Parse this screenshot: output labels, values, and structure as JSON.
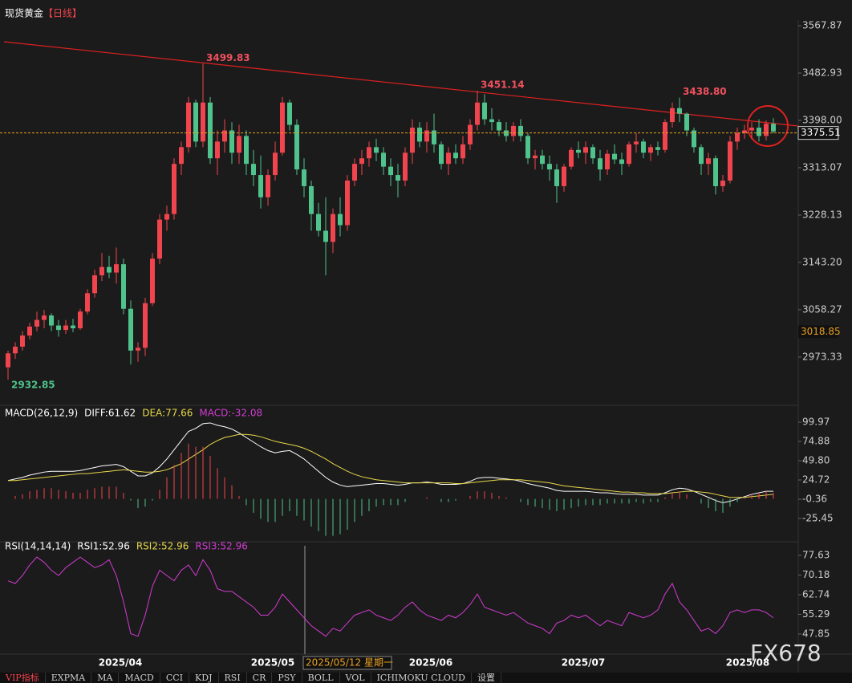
{
  "header": {
    "title": "现货黄金",
    "period": "【日线】"
  },
  "chart_data": [
    {
      "type": "candlestick",
      "up_color": "#f0444e",
      "down_color": "#4fc38b",
      "ylim": [
        2894,
        3578
      ],
      "yticks": [
        3567.87,
        3482.93,
        {
          "value": 3398,
          "label": "3398.00"
        },
        3313.07,
        3228.13,
        {
          "value": 3143.2,
          "label": "3143.20"
        },
        3058.27,
        2973.33
      ],
      "price_line": 3375.51,
      "cursor_price": 3018.85,
      "annotations": [
        {
          "value": 3499.83,
          "label": "3499.83"
        },
        {
          "value": 3451.14,
          "label": "3451.14"
        },
        {
          "value": 3438.8,
          "label": "3438.80"
        },
        {
          "value": 2932.85,
          "label": "2932.85"
        }
      ],
      "ohlc": [
        [
          2955,
          2985,
          2932.85,
          2980
        ],
        [
          2980,
          3000,
          2970,
          2992
        ],
        [
          2992,
          3020,
          2985,
          3012
        ],
        [
          3012,
          3035,
          3005,
          3028
        ],
        [
          3028,
          3055,
          3020,
          3040
        ],
        [
          3040,
          3058,
          3025,
          3048
        ],
        [
          3048,
          3052,
          3020,
          3030
        ],
        [
          3030,
          3040,
          3010,
          3022
        ],
        [
          3022,
          3040,
          3015,
          3030
        ],
        [
          3030,
          3042,
          3018,
          3025
        ],
        [
          3025,
          3060,
          3022,
          3055
        ],
        [
          3055,
          3095,
          3050,
          3088
        ],
        [
          3088,
          3130,
          3080,
          3120
        ],
        [
          3120,
          3160,
          3110,
          3135
        ],
        [
          3135,
          3155,
          3115,
          3125
        ],
        [
          3125,
          3170,
          3105,
          3140
        ],
        [
          3140,
          3150,
          3050,
          3060
        ],
        [
          3060,
          3075,
          2960,
          2985
        ],
        [
          2985,
          3000,
          2965,
          2990
        ],
        [
          2990,
          3080,
          2975,
          3070
        ],
        [
          3070,
          3160,
          3065,
          3150
        ],
        [
          3150,
          3230,
          3140,
          3220
        ],
        [
          3220,
          3245,
          3200,
          3230
        ],
        [
          3230,
          3330,
          3220,
          3320
        ],
        [
          3320,
          3360,
          3300,
          3350
        ],
        [
          3350,
          3440,
          3340,
          3430
        ],
        [
          3430,
          3435,
          3350,
          3360
        ],
        [
          3360,
          3499.83,
          3350,
          3430
        ],
        [
          3430,
          3440,
          3320,
          3330
        ],
        [
          3330,
          3380,
          3300,
          3360
        ],
        [
          3360,
          3400,
          3340,
          3380
        ],
        [
          3380,
          3395,
          3320,
          3340
        ],
        [
          3340,
          3390,
          3320,
          3370
        ],
        [
          3370,
          3380,
          3300,
          3320
        ],
        [
          3320,
          3345,
          3280,
          3300
        ],
        [
          3300,
          3335,
          3240,
          3260
        ],
        [
          3260,
          3310,
          3245,
          3300
        ],
        [
          3300,
          3360,
          3290,
          3340
        ],
        [
          3340,
          3440,
          3335,
          3430
        ],
        [
          3430,
          3435,
          3380,
          3390
        ],
        [
          3390,
          3400,
          3300,
          3310
        ],
        [
          3310,
          3330,
          3260,
          3280
        ],
        [
          3280,
          3290,
          3200,
          3230
        ],
        [
          3230,
          3250,
          3190,
          3200
        ],
        [
          3200,
          3260,
          3120,
          3180
        ],
        [
          3180,
          3240,
          3160,
          3230
        ],
        [
          3230,
          3260,
          3190,
          3210
        ],
        [
          3210,
          3300,
          3200,
          3290
        ],
        [
          3290,
          3330,
          3280,
          3320
        ],
        [
          3320,
          3345,
          3300,
          3330
        ],
        [
          3330,
          3360,
          3315,
          3350
        ],
        [
          3350,
          3365,
          3325,
          3340
        ],
        [
          3340,
          3350,
          3300,
          3315
        ],
        [
          3315,
          3330,
          3280,
          3300
        ],
        [
          3300,
          3320,
          3260,
          3290
        ],
        [
          3290,
          3350,
          3280,
          3340
        ],
        [
          3340,
          3400,
          3320,
          3385
        ],
        [
          3385,
          3395,
          3350,
          3360
        ],
        [
          3360,
          3395,
          3340,
          3380
        ],
        [
          3380,
          3410,
          3340,
          3355
        ],
        [
          3355,
          3360,
          3310,
          3320
        ],
        [
          3320,
          3350,
          3300,
          3340
        ],
        [
          3340,
          3355,
          3320,
          3330
        ],
        [
          3330,
          3370,
          3320,
          3355
        ],
        [
          3355,
          3400,
          3345,
          3390
        ],
        [
          3390,
          3451.14,
          3380,
          3430
        ],
        [
          3430,
          3445,
          3390,
          3400
        ],
        [
          3400,
          3420,
          3380,
          3395
        ],
        [
          3395,
          3400,
          3370,
          3380
        ],
        [
          3380,
          3395,
          3360,
          3370
        ],
        [
          3370,
          3395,
          3360,
          3388
        ],
        [
          3388,
          3400,
          3360,
          3370
        ],
        [
          3370,
          3375,
          3320,
          3330
        ],
        [
          3330,
          3345,
          3310,
          3335
        ],
        [
          3335,
          3345,
          3310,
          3320
        ],
        [
          3320,
          3335,
          3290,
          3310
        ],
        [
          3310,
          3320,
          3250,
          3280
        ],
        [
          3280,
          3320,
          3270,
          3315
        ],
        [
          3315,
          3350,
          3310,
          3345
        ],
        [
          3345,
          3360,
          3330,
          3340
        ],
        [
          3340,
          3360,
          3320,
          3350
        ],
        [
          3350,
          3355,
          3320,
          3330
        ],
        [
          3330,
          3345,
          3290,
          3310
        ],
        [
          3310,
          3345,
          3300,
          3338
        ],
        [
          3338,
          3355,
          3320,
          3328
        ],
        [
          3328,
          3340,
          3300,
          3320
        ],
        [
          3320,
          3360,
          3315,
          3355
        ],
        [
          3355,
          3375,
          3340,
          3360
        ],
        [
          3360,
          3365,
          3330,
          3340
        ],
        [
          3340,
          3355,
          3325,
          3350
        ],
        [
          3350,
          3360,
          3335,
          3345
        ],
        [
          3345,
          3400,
          3340,
          3395
        ],
        [
          3395,
          3430,
          3385,
          3420
        ],
        [
          3420,
          3438.8,
          3395,
          3410
        ],
        [
          3410,
          3412,
          3370,
          3380
        ],
        [
          3380,
          3385,
          3340,
          3350
        ],
        [
          3350,
          3355,
          3300,
          3320
        ],
        [
          3320,
          3340,
          3300,
          3330
        ],
        [
          3330,
          3335,
          3265,
          3280
        ],
        [
          3280,
          3300,
          3270,
          3290
        ],
        [
          3290,
          3370,
          3285,
          3360
        ],
        [
          3360,
          3385,
          3345,
          3375
        ],
        [
          3375,
          3390,
          3365,
          3380
        ],
        [
          3380,
          3395,
          3365,
          3385
        ],
        [
          3385,
          3400,
          3360,
          3370
        ],
        [
          3370,
          3398,
          3362,
          3392
        ],
        [
          3392,
          3402,
          3375,
          3378
        ]
      ]
    },
    {
      "type": "macd",
      "legend": [
        "MACD(26,12,9)",
        "DIFF:61.62",
        "DEA:77.66",
        "MACD:-32.08"
      ],
      "ylim": [
        -52.6,
        111.5
      ],
      "yticks": [
        99.97,
        74.88,
        {
          "value": 49.8,
          "label": "49.80"
        },
        24.72,
        -0.36,
        -25.45
      ],
      "series": [
        {
          "color": "#ffffff",
          "values": [
            24,
            26,
            28,
            31,
            33,
            35,
            36,
            36,
            36,
            36,
            37,
            39,
            41,
            43,
            44,
            45,
            42,
            36,
            30,
            30,
            34,
            42,
            52,
            64,
            76,
            88,
            92,
            98,
            99,
            96,
            94,
            91,
            86,
            80,
            74,
            68,
            63,
            60,
            62,
            63,
            58,
            52,
            44,
            36,
            28,
            22,
            18,
            16,
            17,
            18,
            19,
            20,
            20,
            19,
            18,
            19,
            21,
            21,
            22,
            21,
            19,
            19,
            19,
            20,
            23,
            27,
            28,
            28,
            27,
            26,
            25,
            23,
            20,
            18,
            16,
            14,
            11,
            10,
            10,
            10,
            10,
            9,
            8,
            8,
            7,
            6,
            6,
            6,
            5,
            5,
            5,
            8,
            12,
            14,
            13,
            10,
            6,
            2,
            -2,
            -5,
            -3,
            0,
            3,
            6,
            8,
            10,
            10
          ]
        },
        {
          "color": "#e8d84a",
          "values": [
            24,
            24,
            25,
            26,
            27,
            28,
            29,
            30,
            31,
            32,
            33,
            33,
            34,
            35,
            36,
            37,
            38,
            37,
            36,
            35,
            35,
            36,
            38,
            42,
            46,
            52,
            58,
            64,
            71,
            76,
            80,
            82,
            84,
            84,
            83,
            81,
            78,
            75,
            73,
            71,
            69,
            66,
            62,
            57,
            52,
            46,
            41,
            36,
            32,
            29,
            27,
            25,
            24,
            23,
            22,
            21,
            21,
            21,
            21,
            21,
            21,
            21,
            20,
            20,
            21,
            22,
            23,
            24,
            25,
            25,
            25,
            25,
            24,
            23,
            22,
            21,
            19,
            17,
            16,
            15,
            14,
            13,
            12,
            11,
            10,
            9,
            9,
            8,
            8,
            7,
            7,
            7,
            8,
            9,
            10,
            10,
            9,
            8,
            6,
            4,
            2,
            2,
            2,
            3,
            4,
            5,
            6
          ]
        },
        {
          "bars": true,
          "up_color": "#f0444e",
          "down_color": "#4fc38b",
          "values": [
            0,
            4,
            6,
            10,
            12,
            14,
            14,
            12,
            10,
            8,
            8,
            12,
            14,
            16,
            16,
            16,
            8,
            -2,
            -12,
            -10,
            -2,
            12,
            28,
            44,
            60,
            72,
            68,
            68,
            56,
            40,
            28,
            18,
            4,
            -8,
            -18,
            -26,
            -30,
            -30,
            -22,
            -16,
            -22,
            -28,
            -36,
            -42,
            -48,
            -48,
            -46,
            -40,
            -30,
            -22,
            -16,
            -10,
            -8,
            -8,
            -8,
            -4,
            0,
            0,
            2,
            0,
            -4,
            -4,
            -2,
            0,
            4,
            10,
            10,
            8,
            4,
            2,
            0,
            -4,
            -8,
            -10,
            -12,
            -14,
            -16,
            -14,
            -12,
            -10,
            -8,
            -8,
            -8,
            -6,
            -6,
            -6,
            -6,
            -4,
            -6,
            -4,
            -4,
            2,
            8,
            10,
            6,
            0,
            -6,
            -12,
            -16,
            -18,
            -10,
            -4,
            2,
            6,
            8,
            10,
            8
          ]
        }
      ]
    },
    {
      "type": "line",
      "legend": [
        "RSI(14,14,14)",
        "RSI1:52.96",
        "RSI2:52.96",
        "RSI3:52.96"
      ],
      "ylim": [
        40.25,
        79.76
      ],
      "yticks": [
        77.63,
        70.18,
        62.74,
        55.29,
        47.85
      ],
      "series": [
        {
          "color": "#d23cd2",
          "values": [
            68,
            67,
            70,
            74,
            77,
            75,
            72,
            70,
            73,
            75,
            77,
            75,
            73,
            74,
            76,
            70,
            60,
            48,
            47,
            55,
            66,
            72,
            70,
            68,
            72,
            74,
            70,
            76,
            72,
            65,
            64,
            64,
            62,
            60,
            58,
            55,
            55,
            58,
            63,
            60,
            57,
            54,
            51,
            49,
            47,
            50,
            49,
            52,
            55,
            56,
            57,
            55,
            54,
            53,
            55,
            58,
            60,
            57,
            55,
            54,
            53,
            55,
            54,
            56,
            59,
            63,
            58,
            57,
            56,
            55,
            56,
            54,
            52,
            51,
            50,
            48,
            52,
            53,
            55,
            54,
            55,
            53,
            51,
            53,
            52,
            51,
            56,
            55,
            54,
            55,
            57,
            63,
            67,
            60,
            57,
            53,
            49,
            50,
            48,
            51,
            56,
            57,
            56,
            57,
            57,
            56,
            54
          ]
        }
      ]
    }
  ],
  "x_labels": [
    "2025/04",
    "2025/05",
    "2025/06",
    "2025/07",
    "2025/08"
  ],
  "crosshair_label": "2025/05/12 星期一",
  "watermark": "FX678",
  "toolbar": [
    "VIP指标",
    "EXPMA",
    "MA",
    "MACD",
    "CCI",
    "KDJ",
    "RSI",
    "CR",
    "PSY",
    "BOLL",
    "VOL",
    "ICHIMOKU CLOUD",
    "设置"
  ]
}
